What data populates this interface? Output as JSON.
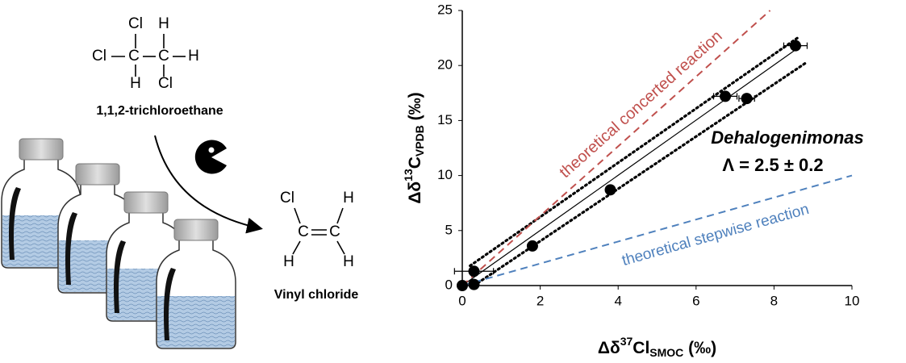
{
  "diagram": {
    "reactant": {
      "atoms": [
        "Cl",
        "H",
        "Cl",
        "C",
        "C",
        "H",
        "H",
        "Cl"
      ],
      "name": "1,1,2-trichloroethane"
    },
    "product": {
      "atoms": [
        "Cl",
        "H",
        "C",
        "C",
        "H",
        "H"
      ],
      "name": "Vinyl chloride"
    }
  },
  "chart_data": {
    "type": "scatter",
    "x_label": {
      "pre": "Δδ",
      "sup": "37",
      "main": "Cl",
      "sub": "SMOC",
      "post": " (‰)"
    },
    "y_label": {
      "pre": "Δδ",
      "sup": "13",
      "main": "C",
      "sub": "VPDB",
      "post": " (‰)"
    },
    "x": [
      0,
      0.3,
      0.3,
      1.8,
      3.8,
      6.75,
      7.3,
      8.55
    ],
    "values": [
      0,
      1.3,
      0.1,
      3.6,
      8.7,
      17.2,
      17.0,
      21.8
    ],
    "xerr": [
      null,
      0.5,
      null,
      null,
      null,
      0.3,
      0.2,
      0.3
    ],
    "color": "#000000",
    "lines": [
      {
        "color": "#000000",
        "dash": "solid",
        "x": [
          0,
          8.7
        ],
        "y": [
          0,
          21.8
        ]
      },
      {
        "color": "#000000",
        "dash": "dotted",
        "x": [
          0.2,
          8.6
        ],
        "y": [
          1.8,
          22.5
        ]
      },
      {
        "color": "#000000",
        "dash": "dotted",
        "x": [
          0.3,
          8.8
        ],
        "y": [
          0,
          20.2
        ]
      },
      {
        "color": "#c0504d",
        "dash": "dashed",
        "x": [
          0,
          7.9
        ],
        "y": [
          0,
          25
        ]
      },
      {
        "color": "#4f81bd",
        "dash": "dashed",
        "x": [
          0,
          10
        ],
        "y": [
          0,
          10
        ]
      }
    ],
    "annotations": [
      {
        "text": "theoretical concerted reaction",
        "color": "#c0504d"
      },
      {
        "text": "theoretical stepwise reaction",
        "color": "#4f81bd"
      },
      {
        "text": "Dehalogenimonas",
        "color": "#000000"
      },
      {
        "text": "Λ = 2.5 ± 0.2",
        "color": "#000000"
      }
    ],
    "xlim": [
      0,
      10
    ],
    "ylim": [
      0,
      25
    ],
    "xticks": [
      0,
      2,
      4,
      6,
      8,
      10
    ],
    "yticks": [
      0,
      5,
      10,
      15,
      20,
      25
    ],
    "grid": false
  }
}
